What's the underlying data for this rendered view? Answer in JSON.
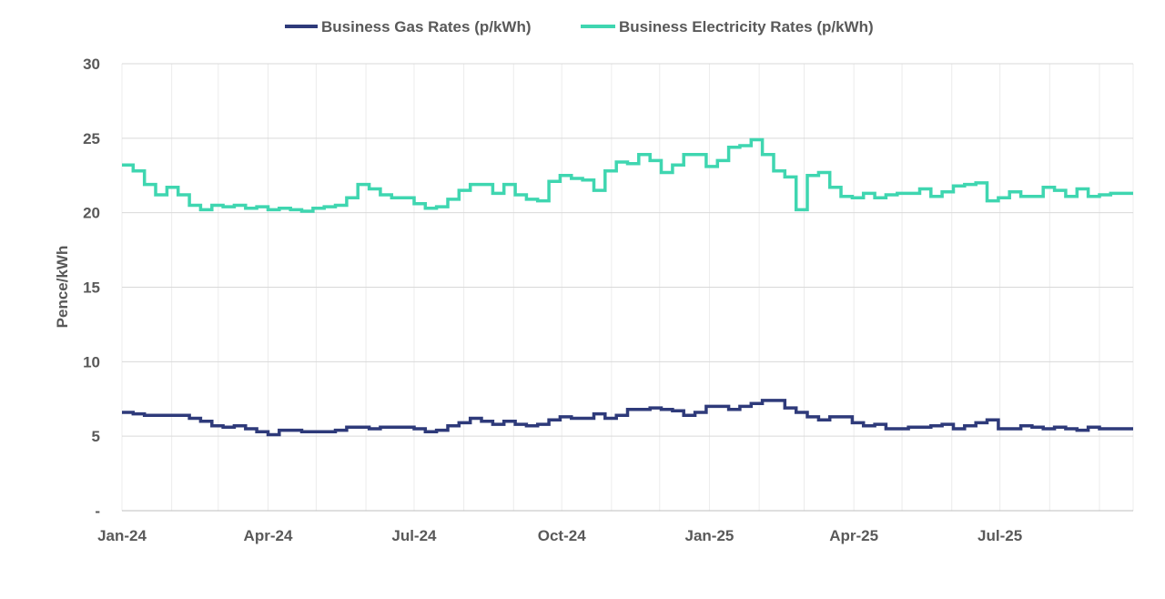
{
  "chart_data": {
    "type": "line",
    "title": "",
    "xlabel": "",
    "ylabel": "Pence/kWh",
    "ylim": [
      0,
      30
    ],
    "yticks": [
      {
        "value": 0,
        "label": "-"
      },
      {
        "value": 5,
        "label": "5"
      },
      {
        "value": 10,
        "label": "10"
      },
      {
        "value": 15,
        "label": "15"
      },
      {
        "value": 20,
        "label": "20"
      },
      {
        "value": 25,
        "label": "25"
      },
      {
        "value": 30,
        "label": "30"
      }
    ],
    "x_start": "2024-01-01",
    "x_end": "2025-09-22",
    "xticks": [
      {
        "date": "2024-01-01",
        "label": "Jan-24"
      },
      {
        "date": "2024-04-01",
        "label": "Apr-24"
      },
      {
        "date": "2024-07-01",
        "label": "Jul-24"
      },
      {
        "date": "2024-10-01",
        "label": "Oct-24"
      },
      {
        "date": "2025-01-01",
        "label": "Jan-25"
      },
      {
        "date": "2025-04-01",
        "label": "Apr-25"
      },
      {
        "date": "2025-07-01",
        "label": "Jul-25"
      }
    ],
    "grid": true,
    "legend_position": "top-center",
    "series": [
      {
        "name": "Business Gas Rates (p/kWh)",
        "color": "#2e3a7a",
        "points": [
          [
            "2024-01-01",
            6.6
          ],
          [
            "2024-01-08",
            6.5
          ],
          [
            "2024-01-15",
            6.4
          ],
          [
            "2024-01-22",
            6.4
          ],
          [
            "2024-01-29",
            6.4
          ],
          [
            "2024-02-05",
            6.4
          ],
          [
            "2024-02-12",
            6.2
          ],
          [
            "2024-02-19",
            6.0
          ],
          [
            "2024-02-26",
            5.7
          ],
          [
            "2024-03-04",
            5.6
          ],
          [
            "2024-03-11",
            5.7
          ],
          [
            "2024-03-18",
            5.5
          ],
          [
            "2024-03-25",
            5.3
          ],
          [
            "2024-04-01",
            5.1
          ],
          [
            "2024-04-08",
            5.4
          ],
          [
            "2024-04-15",
            5.4
          ],
          [
            "2024-04-22",
            5.3
          ],
          [
            "2024-04-29",
            5.3
          ],
          [
            "2024-05-06",
            5.3
          ],
          [
            "2024-05-13",
            5.4
          ],
          [
            "2024-05-20",
            5.6
          ],
          [
            "2024-05-27",
            5.6
          ],
          [
            "2024-06-03",
            5.5
          ],
          [
            "2024-06-10",
            5.6
          ],
          [
            "2024-06-17",
            5.6
          ],
          [
            "2024-06-24",
            5.6
          ],
          [
            "2024-07-01",
            5.5
          ],
          [
            "2024-07-08",
            5.3
          ],
          [
            "2024-07-15",
            5.4
          ],
          [
            "2024-07-22",
            5.7
          ],
          [
            "2024-07-29",
            5.9
          ],
          [
            "2024-08-05",
            6.2
          ],
          [
            "2024-08-12",
            6.0
          ],
          [
            "2024-08-19",
            5.8
          ],
          [
            "2024-08-26",
            6.0
          ],
          [
            "2024-09-02",
            5.8
          ],
          [
            "2024-09-09",
            5.7
          ],
          [
            "2024-09-16",
            5.8
          ],
          [
            "2024-09-23",
            6.1
          ],
          [
            "2024-09-30",
            6.3
          ],
          [
            "2024-10-07",
            6.2
          ],
          [
            "2024-10-14",
            6.2
          ],
          [
            "2024-10-21",
            6.5
          ],
          [
            "2024-10-28",
            6.2
          ],
          [
            "2024-11-04",
            6.4
          ],
          [
            "2024-11-11",
            6.8
          ],
          [
            "2024-11-18",
            6.8
          ],
          [
            "2024-11-25",
            6.9
          ],
          [
            "2024-12-02",
            6.8
          ],
          [
            "2024-12-09",
            6.7
          ],
          [
            "2024-12-16",
            6.4
          ],
          [
            "2024-12-23",
            6.6
          ],
          [
            "2024-12-30",
            7.0
          ],
          [
            "2025-01-06",
            7.0
          ],
          [
            "2025-01-13",
            6.8
          ],
          [
            "2025-01-20",
            7.0
          ],
          [
            "2025-01-27",
            7.2
          ],
          [
            "2025-02-03",
            7.4
          ],
          [
            "2025-02-10",
            7.4
          ],
          [
            "2025-02-17",
            6.9
          ],
          [
            "2025-02-24",
            6.6
          ],
          [
            "2025-03-03",
            6.3
          ],
          [
            "2025-03-10",
            6.1
          ],
          [
            "2025-03-17",
            6.3
          ],
          [
            "2025-03-24",
            6.3
          ],
          [
            "2025-03-31",
            5.9
          ],
          [
            "2025-04-07",
            5.7
          ],
          [
            "2025-04-14",
            5.8
          ],
          [
            "2025-04-21",
            5.5
          ],
          [
            "2025-04-28",
            5.5
          ],
          [
            "2025-05-05",
            5.6
          ],
          [
            "2025-05-12",
            5.6
          ],
          [
            "2025-05-19",
            5.7
          ],
          [
            "2025-05-26",
            5.8
          ],
          [
            "2025-06-02",
            5.5
          ],
          [
            "2025-06-09",
            5.7
          ],
          [
            "2025-06-16",
            5.9
          ],
          [
            "2025-06-23",
            6.1
          ],
          [
            "2025-06-30",
            5.5
          ],
          [
            "2025-07-07",
            5.5
          ],
          [
            "2025-07-14",
            5.7
          ],
          [
            "2025-07-21",
            5.6
          ],
          [
            "2025-07-28",
            5.5
          ],
          [
            "2025-08-04",
            5.6
          ],
          [
            "2025-08-11",
            5.5
          ],
          [
            "2025-08-18",
            5.4
          ],
          [
            "2025-08-25",
            5.6
          ],
          [
            "2025-09-01",
            5.5
          ],
          [
            "2025-09-08",
            5.5
          ],
          [
            "2025-09-22",
            5.5
          ]
        ]
      },
      {
        "name": "Business Electricity Rates (p/kWh)",
        "color": "#3fd6b0",
        "points": [
          [
            "2024-01-01",
            23.2
          ],
          [
            "2024-01-08",
            22.8
          ],
          [
            "2024-01-15",
            21.9
          ],
          [
            "2024-01-22",
            21.2
          ],
          [
            "2024-01-29",
            21.7
          ],
          [
            "2024-02-05",
            21.2
          ],
          [
            "2024-02-12",
            20.5
          ],
          [
            "2024-02-19",
            20.2
          ],
          [
            "2024-02-26",
            20.5
          ],
          [
            "2024-03-04",
            20.4
          ],
          [
            "2024-03-11",
            20.5
          ],
          [
            "2024-03-18",
            20.3
          ],
          [
            "2024-03-25",
            20.4
          ],
          [
            "2024-04-01",
            20.2
          ],
          [
            "2024-04-08",
            20.3
          ],
          [
            "2024-04-15",
            20.2
          ],
          [
            "2024-04-22",
            20.1
          ],
          [
            "2024-04-29",
            20.3
          ],
          [
            "2024-05-06",
            20.4
          ],
          [
            "2024-05-13",
            20.5
          ],
          [
            "2024-05-20",
            21.0
          ],
          [
            "2024-05-27",
            21.9
          ],
          [
            "2024-06-03",
            21.6
          ],
          [
            "2024-06-10",
            21.2
          ],
          [
            "2024-06-17",
            21.0
          ],
          [
            "2024-06-24",
            21.0
          ],
          [
            "2024-07-01",
            20.6
          ],
          [
            "2024-07-08",
            20.3
          ],
          [
            "2024-07-15",
            20.4
          ],
          [
            "2024-07-22",
            20.9
          ],
          [
            "2024-07-29",
            21.5
          ],
          [
            "2024-08-05",
            21.9
          ],
          [
            "2024-08-12",
            21.9
          ],
          [
            "2024-08-19",
            21.3
          ],
          [
            "2024-08-26",
            21.9
          ],
          [
            "2024-09-02",
            21.2
          ],
          [
            "2024-09-09",
            20.9
          ],
          [
            "2024-09-16",
            20.8
          ],
          [
            "2024-09-23",
            22.1
          ],
          [
            "2024-09-30",
            22.5
          ],
          [
            "2024-10-07",
            22.3
          ],
          [
            "2024-10-14",
            22.2
          ],
          [
            "2024-10-21",
            21.5
          ],
          [
            "2024-10-28",
            22.8
          ],
          [
            "2024-11-04",
            23.4
          ],
          [
            "2024-11-11",
            23.3
          ],
          [
            "2024-11-18",
            23.9
          ],
          [
            "2024-11-25",
            23.5
          ],
          [
            "2024-12-02",
            22.7
          ],
          [
            "2024-12-09",
            23.2
          ],
          [
            "2024-12-16",
            23.9
          ],
          [
            "2024-12-23",
            23.9
          ],
          [
            "2024-12-30",
            23.1
          ],
          [
            "2025-01-06",
            23.5
          ],
          [
            "2025-01-13",
            24.4
          ],
          [
            "2025-01-20",
            24.5
          ],
          [
            "2025-01-27",
            24.9
          ],
          [
            "2025-02-03",
            23.9
          ],
          [
            "2025-02-10",
            22.8
          ],
          [
            "2025-02-17",
            22.4
          ],
          [
            "2025-02-24",
            20.2
          ],
          [
            "2025-03-03",
            22.5
          ],
          [
            "2025-03-10",
            22.7
          ],
          [
            "2025-03-17",
            21.7
          ],
          [
            "2025-03-24",
            21.1
          ],
          [
            "2025-03-31",
            21.0
          ],
          [
            "2025-04-07",
            21.3
          ],
          [
            "2025-04-14",
            21.0
          ],
          [
            "2025-04-21",
            21.2
          ],
          [
            "2025-04-28",
            21.3
          ],
          [
            "2025-05-05",
            21.3
          ],
          [
            "2025-05-12",
            21.6
          ],
          [
            "2025-05-19",
            21.1
          ],
          [
            "2025-05-26",
            21.4
          ],
          [
            "2025-06-02",
            21.8
          ],
          [
            "2025-06-09",
            21.9
          ],
          [
            "2025-06-16",
            22.0
          ],
          [
            "2025-06-23",
            20.8
          ],
          [
            "2025-06-30",
            21.0
          ],
          [
            "2025-07-07",
            21.4
          ],
          [
            "2025-07-14",
            21.1
          ],
          [
            "2025-07-21",
            21.1
          ],
          [
            "2025-07-28",
            21.7
          ],
          [
            "2025-08-04",
            21.5
          ],
          [
            "2025-08-11",
            21.1
          ],
          [
            "2025-08-18",
            21.6
          ],
          [
            "2025-08-25",
            21.1
          ],
          [
            "2025-09-01",
            21.2
          ],
          [
            "2025-09-08",
            21.3
          ],
          [
            "2025-09-22",
            21.3
          ]
        ]
      }
    ]
  }
}
